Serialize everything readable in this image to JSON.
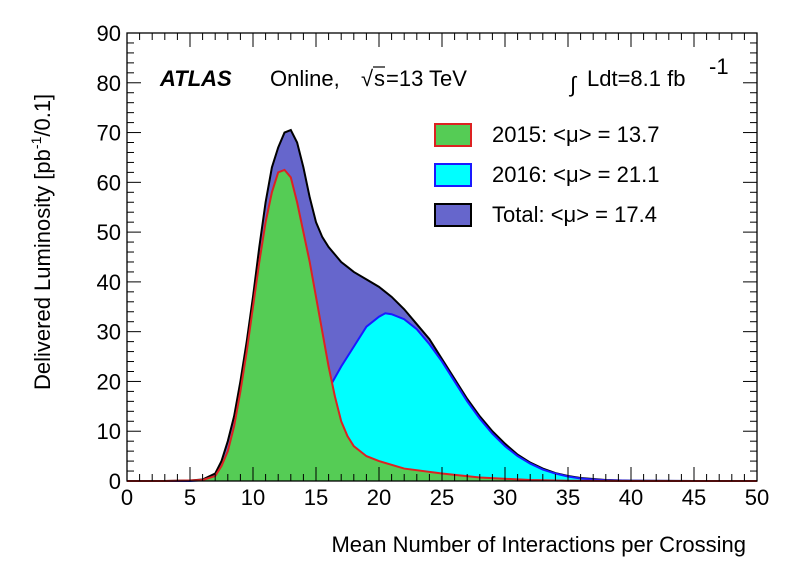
{
  "chart_data": {
    "type": "area",
    "experiment": "ATLAS",
    "status": "Online,",
    "energy_prefix": "√",
    "energy_symbol": "s",
    "energy_value": "=13 TeV",
    "lumi_integral_symbol": "∫",
    "lumi_text": "Ldt=8.1 fb",
    "lumi_exponent": "-1",
    "xlabel": "Mean Number of Interactions per Crossing",
    "ylabel_main": "Delivered Luminosity [pb",
    "ylabel_exponent": "-1",
    "ylabel_tail": "/0.1]",
    "xlim": [
      0,
      50
    ],
    "ylim": [
      0,
      90
    ],
    "xticks": [
      "0",
      "5",
      "10",
      "15",
      "20",
      "25",
      "30",
      "35",
      "40",
      "45",
      "50"
    ],
    "yticks": [
      "0",
      "10",
      "20",
      "30",
      "40",
      "50",
      "60",
      "70",
      "80",
      "90"
    ],
    "legend": [
      {
        "label": "2015: <μ> = 13.7",
        "fill": "#55cc55",
        "stroke": "#dd2222"
      },
      {
        "label": "2016: <μ> = 21.1",
        "fill": "#00ffff",
        "stroke": "#1a1aff"
      },
      {
        "label": "Total: <μ> = 17.4",
        "fill": "#6666cc",
        "stroke": "#000000"
      }
    ],
    "series": [
      {
        "name": "2015: <μ> = 13.7",
        "fill": "#55cc55",
        "stroke": "#dd2222",
        "x": [
          0,
          3,
          5,
          6,
          7,
          7.5,
          8,
          8.5,
          9,
          9.5,
          10,
          10.5,
          11,
          11.5,
          12,
          12.5,
          13,
          13.5,
          14,
          14.5,
          15,
          15.5,
          16,
          16.5,
          17,
          17.5,
          18,
          18.5,
          19,
          20,
          22,
          25,
          28,
          32,
          35,
          40,
          50
        ],
        "y": [
          0,
          0,
          0.1,
          0.2,
          1.0,
          3,
          6,
          11,
          18,
          26,
          35,
          44,
          52,
          58,
          62,
          62.5,
          61,
          56,
          50,
          44,
          37,
          30,
          23,
          17,
          12,
          9,
          7,
          6,
          5,
          4,
          2.5,
          1.5,
          0.7,
          0.2,
          0.05,
          0,
          0
        ]
      },
      {
        "name": "2016: <μ> = 21.1",
        "fill": "#00ffff",
        "stroke": "#1a1aff",
        "x": [
          0,
          5,
          7,
          7.5,
          8,
          9,
          10,
          11,
          12,
          13,
          14,
          15,
          16,
          17,
          18,
          19,
          20,
          20.5,
          21,
          22,
          23,
          24,
          25,
          26,
          27,
          28,
          29,
          30,
          31,
          32,
          33,
          34,
          35,
          36,
          37,
          38,
          40,
          45,
          50
        ],
        "y": [
          0,
          0,
          0.3,
          1,
          2,
          2,
          2.2,
          3,
          5,
          7,
          10,
          14,
          18.5,
          23,
          27,
          31,
          33,
          33.7,
          33.5,
          32.5,
          30.5,
          27.5,
          24,
          20,
          16,
          12.5,
          9.5,
          7,
          5,
          3.5,
          2.3,
          1.5,
          0.9,
          0.5,
          0.3,
          0.15,
          0.05,
          0,
          0
        ]
      },
      {
        "name": "Total: <μ> = 17.4",
        "fill": "#6666cc",
        "stroke": "#000000",
        "x": [
          0,
          3,
          5,
          6,
          7,
          7.5,
          8,
          8.5,
          9,
          9.5,
          10,
          10.5,
          11,
          11.5,
          12,
          12.5,
          13,
          13.5,
          14,
          14.5,
          15,
          15.5,
          16,
          16.5,
          17,
          17.5,
          18,
          19,
          20,
          21,
          22,
          23,
          24,
          25,
          26,
          27,
          28,
          29,
          30,
          31,
          32,
          33,
          34,
          35,
          36,
          38,
          40,
          45,
          50
        ],
        "y": [
          0,
          0,
          0.1,
          0.3,
          1.5,
          4,
          8,
          13,
          20,
          28,
          37,
          47,
          56,
          63,
          67,
          70,
          70.5,
          68,
          63,
          57,
          52,
          49,
          47,
          45.5,
          44,
          43,
          42,
          40.5,
          39,
          37,
          34.5,
          31.5,
          28.5,
          24.5,
          20.5,
          16.5,
          13,
          10,
          7.5,
          5.3,
          3.7,
          2.5,
          1.6,
          1.0,
          0.6,
          0.2,
          0.05,
          0,
          0
        ]
      }
    ]
  }
}
